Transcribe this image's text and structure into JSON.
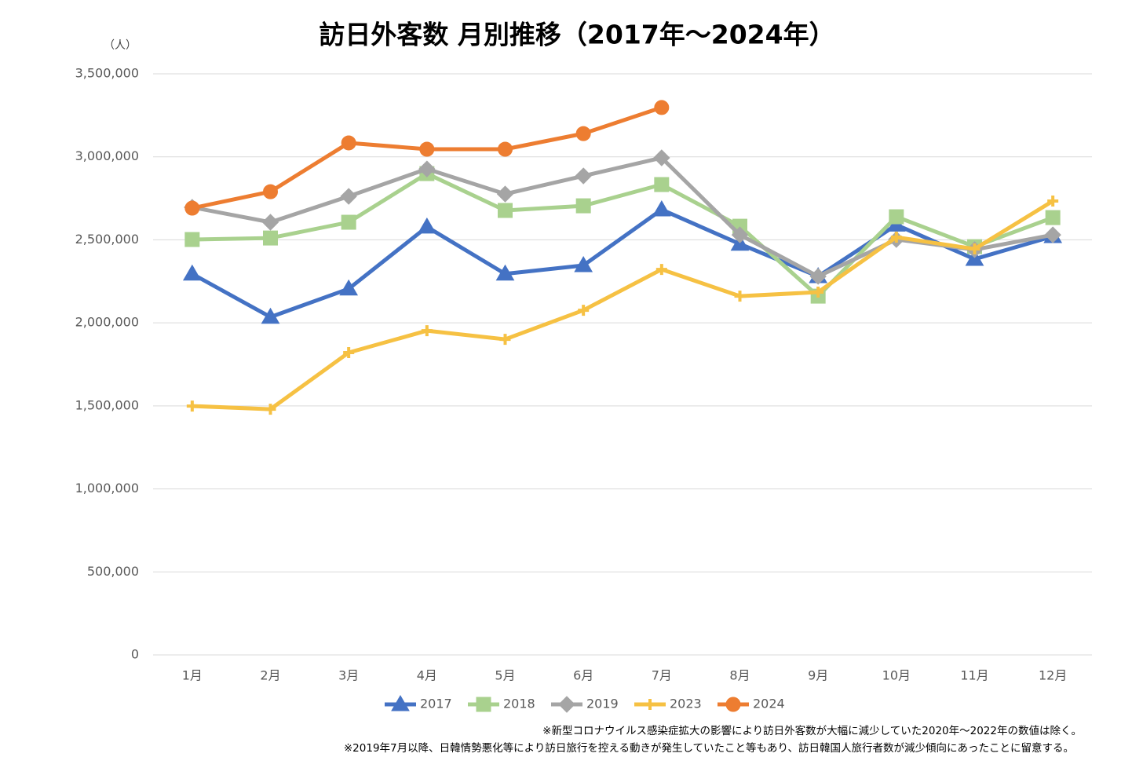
{
  "chart_data": {
    "type": "line",
    "title": "訪日外客数 月別推移（2017年～2024年）",
    "y_unit": "（人）",
    "categories": [
      "1月",
      "2月",
      "3月",
      "4月",
      "5月",
      "6月",
      "7月",
      "8月",
      "9月",
      "10月",
      "11月",
      "12月"
    ],
    "series": [
      {
        "name": "2017",
        "color": "#4472c4",
        "marker": "triangle",
        "values": [
          2295000,
          2035000,
          2205000,
          2578000,
          2295000,
          2346000,
          2682000,
          2475000,
          2280000,
          2590000,
          2384000,
          2521000
        ]
      },
      {
        "name": "2018",
        "color": "#a9d18e",
        "marker": "square",
        "values": [
          2502000,
          2511000,
          2606000,
          2899000,
          2677000,
          2705000,
          2833000,
          2582000,
          2161000,
          2639000,
          2459000,
          2634000
        ]
      },
      {
        "name": "2019",
        "color": "#a5a5a5",
        "marker": "diamond",
        "values": [
          2696000,
          2606000,
          2762000,
          2927000,
          2776000,
          2885000,
          2994000,
          2530000,
          2280000,
          2502000,
          2441000,
          2530000
        ]
      },
      {
        "name": "2023",
        "color": "#f6c143",
        "marker": "plus",
        "values": [
          1499000,
          1480000,
          1821000,
          1953000,
          1901000,
          2076000,
          2322000,
          2161000,
          2185000,
          2516000,
          2445000,
          2734000
        ]
      },
      {
        "name": "2024",
        "color": "#ed7d31",
        "marker": "circle",
        "values": [
          2691000,
          2790000,
          3084000,
          3046000,
          3046000,
          3140000,
          3297000,
          null,
          null,
          null,
          null,
          null
        ]
      }
    ],
    "ylim": [
      0,
      3500000
    ],
    "yticks": [
      0,
      {
        "value": 500000,
        "label": "500,000"
      },
      {
        "value": 1000000,
        "label": "1,000,000"
      },
      {
        "value": 1500000,
        "label": "1,500,000"
      },
      {
        "value": 2000000,
        "label": "2,000,000"
      },
      {
        "value": 2500000,
        "label": "2,500,000"
      },
      {
        "value": 3000000,
        "label": "3,000,000"
      },
      {
        "value": 3500000,
        "label": "3,500,000"
      }
    ],
    "grid": true,
    "legend": "bottom",
    "notes": [
      "※新型コロナウイルス感染症拡大の影響により訪日外客数が大幅に減少していた2020年～2022年の数値は除く。",
      "※2019年7月以降、日韓情勢悪化等により訪日旅行を控える動きが発生していたこと等もあり、訪日韓国人旅行者数が減少傾向にあったことに留意する。"
    ]
  }
}
